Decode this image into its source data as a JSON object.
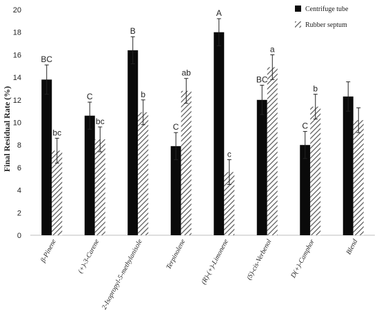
{
  "chart_data": {
    "type": "bar",
    "ylabel": "Final Residual Rate (%)",
    "ylim": [
      0,
      20
    ],
    "yticks": [
      0,
      2,
      4,
      6,
      8,
      10,
      12,
      14,
      16,
      18,
      20
    ],
    "grid": false,
    "legend_position": "top-right",
    "categories": [
      "β-Pinene",
      "(+)-3-Carene",
      "2-Isopropyl-5-methylanisole",
      "Terpinolene",
      "(R)-(+)-Limonene",
      "(S)-cis-Verbenol",
      "D(+)-Camphor",
      "Blend"
    ],
    "series": [
      {
        "name": "Centrifuge tube",
        "style": "solid",
        "color": "#0a0a0a",
        "values": [
          13.8,
          10.6,
          16.4,
          7.9,
          18.0,
          12.0,
          8.0,
          12.3
        ],
        "errors": [
          1.3,
          1.2,
          1.2,
          1.2,
          1.2,
          1.3,
          1.2,
          1.3
        ],
        "labels": [
          "BC",
          "C",
          "B",
          "C",
          "A",
          "BC",
          "C",
          ""
        ]
      },
      {
        "name": "Rubber septum",
        "style": "hatched",
        "color": "#555555",
        "values": [
          7.5,
          8.5,
          10.9,
          12.8,
          5.6,
          14.9,
          11.4,
          10.2
        ],
        "errors": [
          1.1,
          1.1,
          1.1,
          1.1,
          1.1,
          1.1,
          1.1,
          1.1
        ],
        "labels": [
          "bc",
          "bc",
          "b",
          "ab",
          "c",
          "a",
          "b",
          ""
        ]
      }
    ]
  }
}
